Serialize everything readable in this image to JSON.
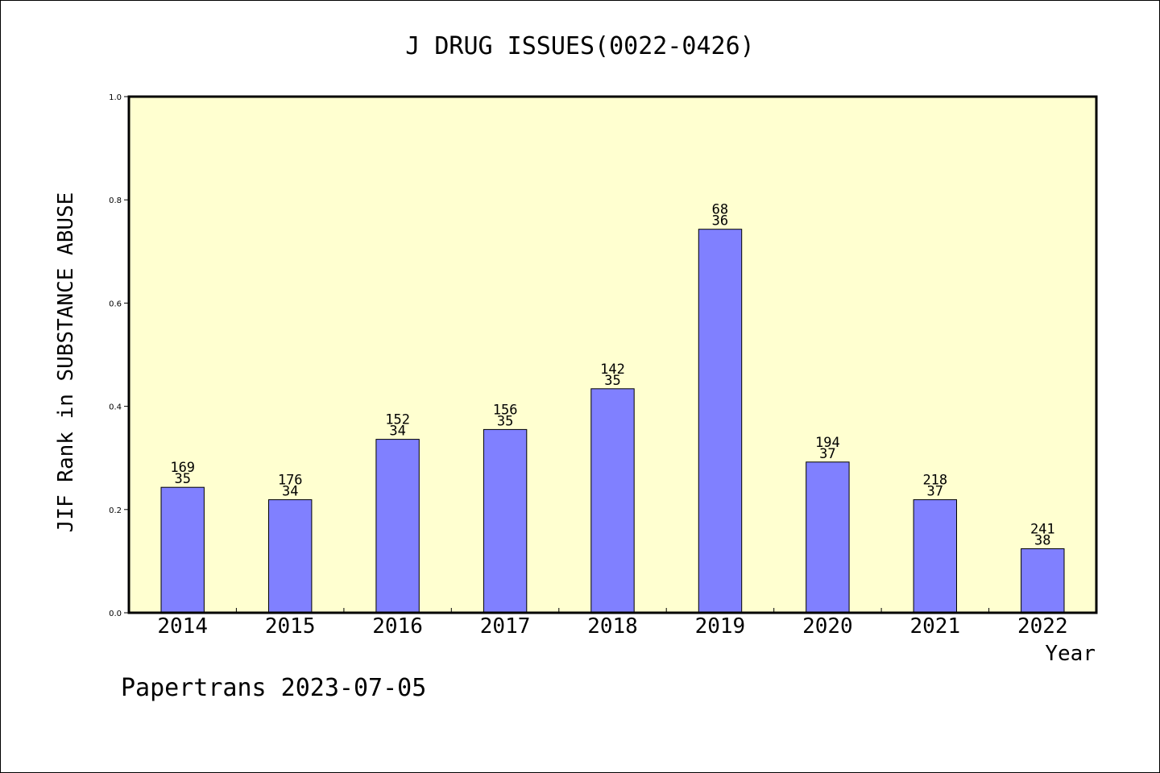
{
  "chart_data": {
    "type": "bar",
    "title": "J DRUG ISSUES(0022-0426)",
    "xlabel": "Year",
    "ylabel": "JIF Rank in SUBSTANCE ABUSE",
    "categories": [
      "2014",
      "2015",
      "2016",
      "2017",
      "2018",
      "2019",
      "2020",
      "2021",
      "2022"
    ],
    "values": [
      0.243,
      0.219,
      0.336,
      0.355,
      0.434,
      0.743,
      0.292,
      0.219,
      0.124
    ],
    "rank_labels": [
      "169",
      "176",
      "152",
      "156",
      "142",
      "68",
      "194",
      "218",
      "241"
    ],
    "count_labels": [
      "35",
      "34",
      "34",
      "35",
      "35",
      "36",
      "37",
      "37",
      "38"
    ],
    "ylim": [
      0,
      1.0
    ],
    "yticks": [
      "0.0",
      "0.2",
      "0.4",
      "0.6",
      "0.8",
      "1.0"
    ],
    "grid": false,
    "legend": "none",
    "colors": {
      "plot_background": "#ffffd0",
      "bar_fill": "#8080ff",
      "bar_stroke": "#000000",
      "axis": "#000000"
    }
  },
  "footer": {
    "watermark": "Papertrans 2023-07-05"
  }
}
